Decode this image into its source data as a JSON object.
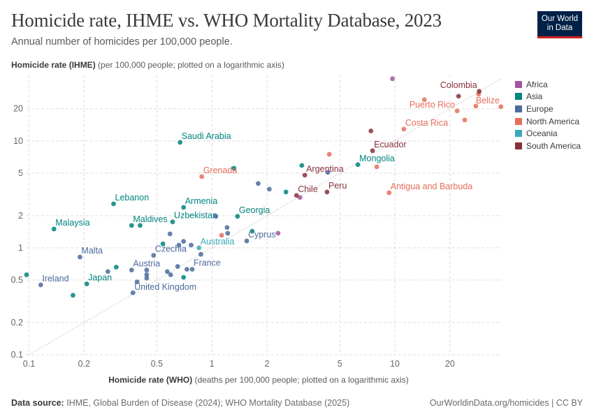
{
  "header": {
    "title": "Homicide rate, IHME vs. WHO Mortality Database, 2023",
    "subtitle": "Annual number of homicides per 100,000 people.",
    "logo": [
      "Our World",
      "in Data"
    ]
  },
  "footer": {
    "source_label": "Data source:",
    "source": "IHME, Global Burden of Disease (2024); WHO Mortality Database (2025)",
    "url": "OurWorldinData.org/homicides | CC BY"
  },
  "chart_data": {
    "type": "scatter",
    "ylabel_bold": "Homicide rate (IHME)",
    "ylabel_rest": " (per 100,000 people; plotted on a logarithmic axis)",
    "xlabel_bold": "Homicide rate (WHO)",
    "xlabel_rest": " (deaths per 100,000 people; plotted on a logarithmic axis)",
    "x_scale": "log",
    "y_scale": "log",
    "xlim": [
      0.097,
      38.4
    ],
    "ylim": [
      0.1,
      41
    ],
    "x_ticks": [
      "0.1",
      "0.2",
      "0.5",
      "1",
      "2",
      "5",
      "10",
      "20"
    ],
    "y_ticks": [
      "0.1",
      "0.2",
      "0.5",
      "1",
      "2",
      "5",
      "10",
      "20"
    ],
    "grid": true,
    "reference_line": "y = x",
    "legend_position": "right",
    "series": [
      {
        "name": "Africa",
        "color": "#a2559c",
        "points": [
          {
            "x": 9.7,
            "y": 38.2
          },
          {
            "x": 3.03,
            "y": 2.96
          },
          {
            "x": 2.3,
            "y": 1.37
          }
        ]
      },
      {
        "name": "Asia",
        "color": "#00847e",
        "points": [
          {
            "x": 0.67,
            "y": 9.7,
            "label": "Saudi Arabia"
          },
          {
            "x": 0.29,
            "y": 2.58,
            "label": "Lebanon"
          },
          {
            "x": 0.137,
            "y": 1.5,
            "label": "Malaysia"
          },
          {
            "x": 0.364,
            "y": 1.62,
            "label": "Maldives"
          },
          {
            "x": 0.405,
            "y": 1.62
          },
          {
            "x": 0.7,
            "y": 2.39,
            "label": "Armenia"
          },
          {
            "x": 0.61,
            "y": 1.75,
            "label": "Uzbekistan"
          },
          {
            "x": 1.38,
            "y": 1.97,
            "label": "Georgia"
          },
          {
            "x": 0.54,
            "y": 1.09
          },
          {
            "x": 0.3,
            "y": 0.66
          },
          {
            "x": 0.207,
            "y": 0.46,
            "label": "Japan"
          },
          {
            "x": 0.097,
            "y": 0.56
          },
          {
            "x": 0.174,
            "y": 0.36
          },
          {
            "x": 0.7,
            "y": 0.53
          },
          {
            "x": 1.32,
            "y": 5.56
          },
          {
            "x": 3.1,
            "y": 5.9
          },
          {
            "x": 2.54,
            "y": 3.33
          },
          {
            "x": 6.28,
            "y": 6.0,
            "label": "Mongolia"
          },
          {
            "x": 1.66,
            "y": 1.43
          }
        ]
      },
      {
        "name": "Europe",
        "color": "#4c6a9c",
        "points": [
          {
            "x": 0.19,
            "y": 0.82,
            "label": "Malta"
          },
          {
            "x": 0.116,
            "y": 0.45,
            "label": "Ireland"
          },
          {
            "x": 0.27,
            "y": 0.6
          },
          {
            "x": 0.364,
            "y": 0.62,
            "label": "Austria"
          },
          {
            "x": 0.44,
            "y": 0.62
          },
          {
            "x": 0.44,
            "y": 0.56
          },
          {
            "x": 0.44,
            "y": 0.52
          },
          {
            "x": 0.39,
            "y": 0.48
          },
          {
            "x": 0.37,
            "y": 0.38,
            "label": "United Kingdom"
          },
          {
            "x": 0.48,
            "y": 0.85,
            "label": "Czechia"
          },
          {
            "x": 0.59,
            "y": 1.35
          },
          {
            "x": 0.66,
            "y": 1.06
          },
          {
            "x": 0.7,
            "y": 1.15
          },
          {
            "x": 0.77,
            "y": 1.06
          },
          {
            "x": 0.57,
            "y": 0.6
          },
          {
            "x": 0.595,
            "y": 0.56
          },
          {
            "x": 0.65,
            "y": 0.67
          },
          {
            "x": 0.73,
            "y": 0.63
          },
          {
            "x": 0.78,
            "y": 0.63,
            "label": "France"
          },
          {
            "x": 0.87,
            "y": 0.87
          },
          {
            "x": 1.05,
            "y": 1.97
          },
          {
            "x": 1.21,
            "y": 1.55
          },
          {
            "x": 1.22,
            "y": 1.37
          },
          {
            "x": 1.55,
            "y": 1.16,
            "label": "Cyprus"
          },
          {
            "x": 1.79,
            "y": 4.0
          },
          {
            "x": 2.06,
            "y": 3.54
          },
          {
            "x": 4.3,
            "y": 5.08
          }
        ]
      },
      {
        "name": "North America",
        "color": "#e56e5a",
        "points": [
          {
            "x": 0.88,
            "y": 4.64,
            "label": "Grenada"
          },
          {
            "x": 1.13,
            "y": 1.31
          },
          {
            "x": 4.38,
            "y": 7.5
          },
          {
            "x": 7.96,
            "y": 5.73
          },
          {
            "x": 9.3,
            "y": 3.28,
            "label": "Antigua and Barbuda"
          },
          {
            "x": 11.2,
            "y": 12.9,
            "label": "Costa Rica"
          },
          {
            "x": 14.5,
            "y": 24.3
          },
          {
            "x": 21.9,
            "y": 19.1,
            "label": "Puerto Rico"
          },
          {
            "x": 24.1,
            "y": 15.7
          },
          {
            "x": 27.7,
            "y": 21.2,
            "label": "Belize"
          },
          {
            "x": 28.7,
            "y": 27.4
          },
          {
            "x": 38,
            "y": 20.9
          }
        ]
      },
      {
        "name": "Oceania",
        "color": "#38aaba",
        "points": [
          {
            "x": 0.85,
            "y": 1.0,
            "label": "Australia"
          }
        ]
      },
      {
        "name": "South America",
        "color": "#883039",
        "points": [
          {
            "x": 28.9,
            "y": 29.1,
            "label": "Colombia"
          },
          {
            "x": 22.3,
            "y": 26.2
          },
          {
            "x": 7.4,
            "y": 12.4
          },
          {
            "x": 7.55,
            "y": 8.1,
            "label": "Ecuador"
          },
          {
            "x": 3.22,
            "y": 4.78,
            "label": "Argentina"
          },
          {
            "x": 2.9,
            "y": 3.09,
            "label": "Chile"
          },
          {
            "x": 4.26,
            "y": 3.33,
            "label": "Peru"
          }
        ]
      }
    ]
  }
}
